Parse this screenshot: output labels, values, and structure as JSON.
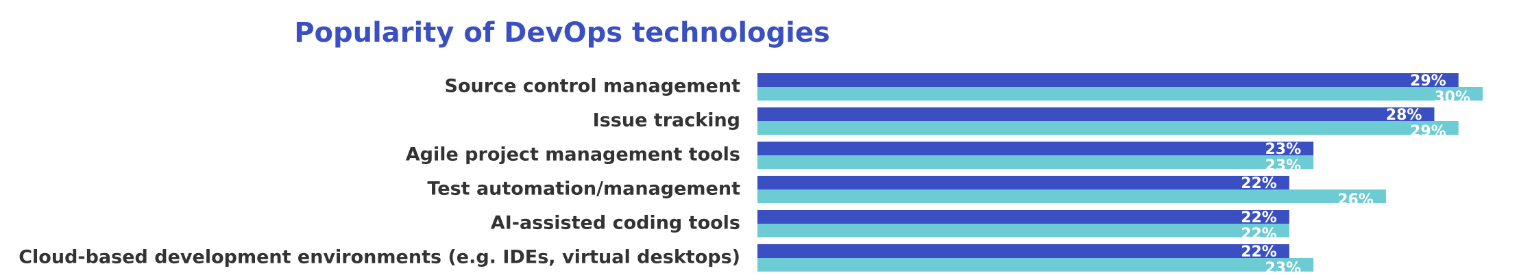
{
  "chart_data": {
    "type": "bar",
    "orientation": "horizontal",
    "title": "Popularity of DevOps technologies",
    "categories": [
      "Source control management",
      "Issue tracking",
      "Agile project management tools",
      "Test automation/management",
      "AI-assisted coding tools",
      "Cloud-based development environments (e.g. IDEs, virtual desktops)"
    ],
    "series": [
      {
        "color": "#3a4fc1",
        "values": [
          29,
          28,
          23,
          22,
          22,
          22
        ],
        "value_labels": [
          "29%",
          "28%",
          "23%",
          "22%",
          "22%",
          "22%"
        ]
      },
      {
        "color": "#6ccbd3",
        "values": [
          30,
          29,
          23,
          26,
          22,
          23
        ],
        "value_labels": [
          "30%",
          "29%",
          "23%",
          "26%",
          "22%",
          "23%"
        ]
      }
    ]
  }
}
